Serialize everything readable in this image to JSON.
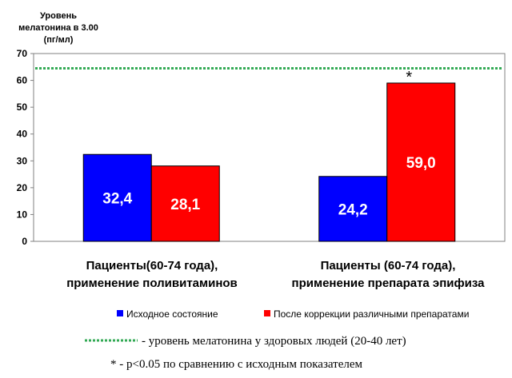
{
  "chart_data": {
    "type": "bar",
    "ylabel_lines": [
      "Уровень",
      "мелатонина в 3.00",
      "(пг/мл)"
    ],
    "ylim": [
      0,
      70
    ],
    "yticks": [
      0,
      10,
      20,
      30,
      40,
      50,
      60,
      70
    ],
    "categories": [
      [
        "Пациенты(60-74 года),",
        "применение поливитаминов"
      ],
      [
        "Пациенты (60-74 года),",
        "применение препарата эпифиза"
      ]
    ],
    "series": [
      {
        "name": "Исходное состояние",
        "color": "#0000ff",
        "values": [
          32.4,
          24.2
        ],
        "labels": [
          "32,4",
          "24,2"
        ]
      },
      {
        "name": "После коррекции различными препаратами",
        "color": "#ff0000",
        "values": [
          28.1,
          59.0
        ],
        "labels": [
          "28,1",
          "59,0"
        ]
      }
    ],
    "reference_line": {
      "value": 64.5,
      "color": "#33aa55",
      "label": "- уровень мелатонина у здоровых людей (20-40 лет)"
    },
    "significance": {
      "category": 1,
      "series": 1,
      "marker": "*",
      "note": "* - p<0.05 по сравнению с исходным показателем"
    },
    "grid": false
  }
}
